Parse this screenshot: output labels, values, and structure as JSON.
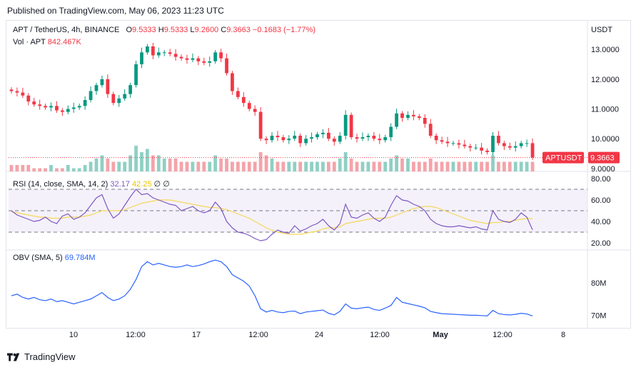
{
  "header": {
    "published": "Published on TradingView.com, May 06, 2023 11:23 UTC"
  },
  "symbol": {
    "name": "APT / TetherUS, 4h, BINANCE",
    "o_label": "O",
    "o": "9.5333",
    "h_label": "H",
    "h": "9.5333",
    "l_label": "L",
    "l": "9.2600",
    "c_label": "C",
    "c": "9.3663",
    "change": "−0.1683 (−1.77%)"
  },
  "volume": {
    "label": "Vol · APT",
    "value": "842.467K"
  },
  "price_axis": {
    "currency": "USDT",
    "ticks": [
      "13.0000",
      "12.0000",
      "11.0000",
      "10.0000",
      "9.0000"
    ]
  },
  "price_tag": {
    "ticker": "APTUSDT",
    "value": "9.3663",
    "price": 9.3663
  },
  "rsi": {
    "label": "RSI (14, close, SMA, 14, 2)",
    "value": "32.17",
    "sma_value": "42.25",
    "extra1": "∅",
    "extra2": "∅",
    "ticks": [
      "80.00",
      "60.00",
      "40.00",
      "20.00"
    ]
  },
  "obv": {
    "label": "OBV (SMA, 5)",
    "value": "69.784M",
    "ticks": [
      "80M",
      "70M"
    ]
  },
  "time_axis": {
    "labels": [
      "10",
      "12:00",
      "17",
      "12:00",
      "24",
      "12:00",
      "May",
      "12:00",
      "8"
    ]
  },
  "footer": {
    "brand": "TradingView"
  },
  "colors": {
    "up": "#089981",
    "down": "#f23645",
    "rsi": "#7e57c2",
    "rsi_sma": "#f5d85b",
    "obv": "#2962ff"
  },
  "chart_data": [
    {
      "type": "candlestick",
      "title": "APT / TetherUS, 4h, BINANCE",
      "ylim": [
        8.9,
        13.7
      ],
      "close_path": [
        11.6,
        11.55,
        11.45,
        11.25,
        11.15,
        11.1,
        11.05,
        11.1,
        10.95,
        10.9,
        11.0,
        11.05,
        11.1,
        11.3,
        11.6,
        11.8,
        12.0,
        11.5,
        11.2,
        11.35,
        11.5,
        11.8,
        12.5,
        12.9,
        13.1,
        12.8,
        12.9,
        12.9,
        12.85,
        12.75,
        12.7,
        12.65,
        12.7,
        12.6,
        12.55,
        12.6,
        12.9,
        12.7,
        12.2,
        11.6,
        11.4,
        11.2,
        11.0,
        10.9,
        10.0,
        9.95,
        10.1,
        10.05,
        9.95,
        10.0,
        10.1,
        9.85,
        10.0,
        10.05,
        10.15,
        10.2,
        10.0,
        9.9,
        10.1,
        10.8,
        10.05,
        10.0,
        10.05,
        10.1,
        10.0,
        9.95,
        10.05,
        10.4,
        10.85,
        10.7,
        10.8,
        10.75,
        10.7,
        10.5,
        10.1,
        9.95,
        9.9,
        9.85,
        9.85,
        9.8,
        9.75,
        9.7,
        9.7,
        9.6,
        9.55,
        10.1,
        9.85,
        9.75,
        9.7,
        9.75,
        9.85,
        9.85,
        9.3663
      ],
      "volume": [
        2,
        2,
        2,
        2,
        1,
        1,
        1,
        2,
        1,
        1,
        2,
        1,
        1,
        2,
        3,
        4,
        5,
        4,
        3,
        3,
        3,
        5,
        8,
        6,
        7,
        5,
        5,
        4,
        4,
        4,
        3,
        3,
        3,
        3,
        3,
        3,
        5,
        4,
        4,
        3,
        3,
        3,
        3,
        3,
        6,
        5,
        4,
        3,
        3,
        3,
        3,
        3,
        3,
        3,
        3,
        3,
        3,
        3,
        4,
        6,
        4,
        3,
        3,
        3,
        3,
        3,
        3,
        4,
        5,
        4,
        4,
        3,
        3,
        3,
        4,
        3,
        3,
        3,
        3,
        3,
        3,
        3,
        3,
        3,
        3,
        5,
        3,
        3,
        3,
        3,
        3,
        3,
        3
      ]
    },
    {
      "type": "line",
      "name": "RSI",
      "ylim": [
        20,
        80
      ],
      "bands": [
        70,
        50,
        30
      ],
      "values": [
        50,
        46,
        44,
        42,
        40,
        41,
        44,
        40,
        38,
        45,
        47,
        42,
        44,
        48,
        55,
        62,
        65,
        52,
        43,
        47,
        55,
        63,
        70,
        65,
        66,
        62,
        60,
        58,
        56,
        55,
        50,
        52,
        54,
        50,
        48,
        50,
        58,
        52,
        40,
        34,
        30,
        29,
        27,
        24,
        22,
        23,
        28,
        32,
        30,
        29,
        36,
        31,
        33,
        36,
        38,
        42,
        36,
        32,
        38,
        56,
        44,
        43,
        46,
        48,
        43,
        40,
        44,
        55,
        64,
        60,
        59,
        56,
        54,
        50,
        42,
        38,
        36,
        35,
        35,
        36,
        35,
        34,
        35,
        33,
        32,
        50,
        42,
        40,
        39,
        42,
        48,
        44,
        32.17
      ],
      "sma": [
        49,
        48,
        47,
        46,
        45,
        44,
        44,
        43,
        43,
        43,
        44,
        44,
        44,
        45,
        46,
        48,
        50,
        50,
        50,
        50,
        51,
        53,
        55,
        57,
        58,
        59,
        60,
        60,
        60,
        59,
        58,
        57,
        56,
        55,
        54,
        53,
        53,
        52,
        51,
        49,
        47,
        45,
        43,
        40,
        37,
        34,
        32,
        30,
        29,
        28,
        28,
        28,
        29,
        30,
        31,
        33,
        34,
        34,
        35,
        38,
        39,
        40,
        41,
        42,
        43,
        43,
        43,
        44,
        46,
        48,
        50,
        52,
        53,
        54,
        54,
        53,
        51,
        49,
        47,
        45,
        43,
        41,
        40,
        39,
        38,
        39,
        39,
        40,
        40,
        41,
        42,
        43,
        42.25
      ]
    },
    {
      "type": "line",
      "name": "OBV",
      "ylim": [
        67,
        89
      ],
      "values": [
        76,
        76.5,
        75.5,
        75,
        75.5,
        74.8,
        74.5,
        75,
        74.2,
        74.5,
        74,
        73.5,
        74,
        74.5,
        75,
        76,
        77,
        75.5,
        74.5,
        75,
        76,
        78,
        81,
        85,
        86.5,
        85.5,
        86,
        85.5,
        85,
        84.8,
        85,
        85.5,
        85,
        85.3,
        85.8,
        86.5,
        87,
        86.5,
        85,
        82.5,
        81.5,
        80.5,
        79,
        76,
        72,
        71,
        71.5,
        71,
        70.8,
        71.2,
        71.3,
        70.5,
        71,
        71.2,
        71.4,
        71.6,
        70.6,
        70.1,
        71.2,
        73.5,
        72.2,
        72,
        72.3,
        72.5,
        71.8,
        71.5,
        72.2,
        73,
        75.5,
        74,
        73.6,
        73.2,
        72.8,
        72.3,
        71.2,
        70.8,
        70.5,
        70.4,
        70.3,
        70.2,
        70.1,
        70.0,
        70.0,
        69.9,
        69.8,
        71.5,
        70.5,
        70.2,
        70.1,
        70.3,
        70.6,
        70.4,
        69.784
      ]
    }
  ]
}
